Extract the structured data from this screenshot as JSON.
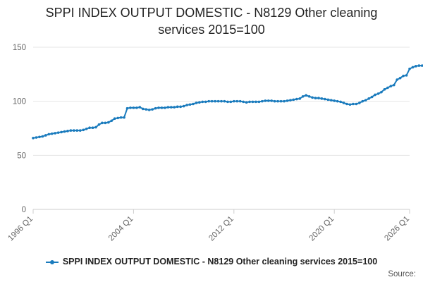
{
  "title_line1": "SPPI INDEX OUTPUT DOMESTIC - N8129 Other cleaning",
  "title_line2": "services 2015=100",
  "legend_label": "SPPI INDEX OUTPUT DOMESTIC - N8129 Other cleaning services 2015=100",
  "source_label": "Source:",
  "colors": {
    "series": "#1a7bbd",
    "grid": "#e6e6e6",
    "axis": "#cccccc",
    "tick_text": "#666666"
  },
  "chart_data": {
    "type": "line",
    "title": "SPPI INDEX OUTPUT DOMESTIC - N8129 Other cleaning services 2015=100",
    "xlabel": "",
    "ylabel": "",
    "ylim": [
      0,
      150
    ],
    "yticks": [
      0,
      50,
      100,
      150
    ],
    "xticks": [
      "1996 Q1",
      "2004 Q1",
      "2012 Q1",
      "2020 Q1",
      "2026 Q1"
    ],
    "grid": true,
    "legend_position": "bottom",
    "series": [
      {
        "name": "SPPI INDEX OUTPUT DOMESTIC - N8129 Other cleaning services 2015=100",
        "x_start": "1996 Q1",
        "values": [
          66,
          66.5,
          67,
          67.5,
          68.5,
          69.5,
          70,
          70.5,
          71,
          71.5,
          72,
          72.5,
          73,
          73,
          73,
          73,
          73.5,
          74.5,
          75.5,
          75.5,
          76,
          78.5,
          80,
          80,
          80.5,
          82,
          84,
          84.5,
          85,
          85,
          93.5,
          94,
          94,
          94,
          94.5,
          93,
          92.5,
          92,
          92.5,
          93.5,
          94,
          94,
          94,
          94.5,
          94.5,
          94.5,
          95,
          95,
          95.5,
          96.5,
          97,
          97.5,
          98.5,
          99,
          99.5,
          99.5,
          100,
          100,
          100,
          100,
          100,
          100,
          99.5,
          99.5,
          100,
          100,
          100,
          99.5,
          99,
          99.5,
          99.5,
          99.5,
          99.5,
          100,
          100.5,
          100.5,
          100.5,
          100,
          100,
          100,
          100,
          100.5,
          101,
          101.5,
          102,
          102.5,
          104.5,
          105.5,
          104.5,
          103.5,
          103,
          103,
          102.5,
          102,
          101.5,
          101,
          100.5,
          100,
          99.5,
          98.5,
          97.5,
          97,
          97.5,
          97.5,
          98.5,
          100,
          101,
          102.5,
          104,
          106,
          107,
          108.5,
          111,
          112.5,
          114,
          115,
          120,
          121.5,
          123.5,
          124,
          130,
          131.5,
          132.5,
          133,
          133
        ]
      }
    ]
  }
}
